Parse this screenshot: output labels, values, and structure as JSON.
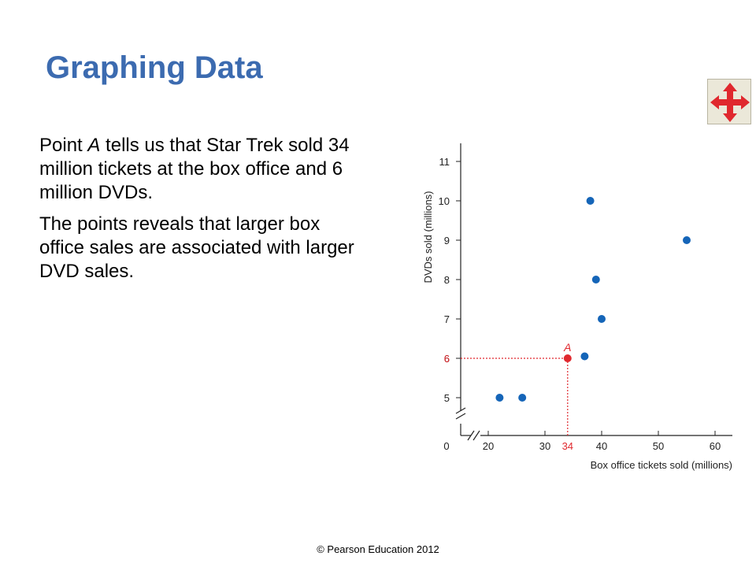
{
  "slide": {
    "title": "Graphing Data",
    "footer": "© Pearson Education 2012",
    "nav_icon": "move-arrows-icon",
    "paragraph1": {
      "before": "Point ",
      "point": "A",
      "after": " tells us that Star Trek sold 34 million tickets at the box office and 6 million DVDs."
    },
    "paragraph2": "The points reveals that larger box office sales are associated with larger DVD sales."
  },
  "colors": {
    "title": "#3c6bb0",
    "points": "#1565b8",
    "highlight": "#e0282e",
    "nav_arrows": "#e0282e",
    "nav_bg": "#ebe8d9"
  },
  "chart_data": {
    "type": "scatter",
    "xlabel": "Box office tickets sold (millions)",
    "ylabel": "DVDs sold (millions)",
    "xlim": [
      15,
      62
    ],
    "ylim": [
      4.5,
      11.4
    ],
    "x_ticks": [
      20,
      30,
      40,
      50,
      60
    ],
    "y_ticks": [
      5,
      6,
      7,
      8,
      9,
      10,
      11
    ],
    "origin_label": "0",
    "axis_break": true,
    "points": [
      {
        "x": 22,
        "y": 5
      },
      {
        "x": 26,
        "y": 5
      },
      {
        "x": 37,
        "y": 6.05
      },
      {
        "x": 38,
        "y": 10
      },
      {
        "x": 39,
        "y": 8
      },
      {
        "x": 40,
        "y": 7
      },
      {
        "x": 55,
        "y": 9
      }
    ],
    "highlight": {
      "x": 34,
      "y": 6,
      "label": "A",
      "x_label": "34",
      "y_label": "6"
    }
  }
}
